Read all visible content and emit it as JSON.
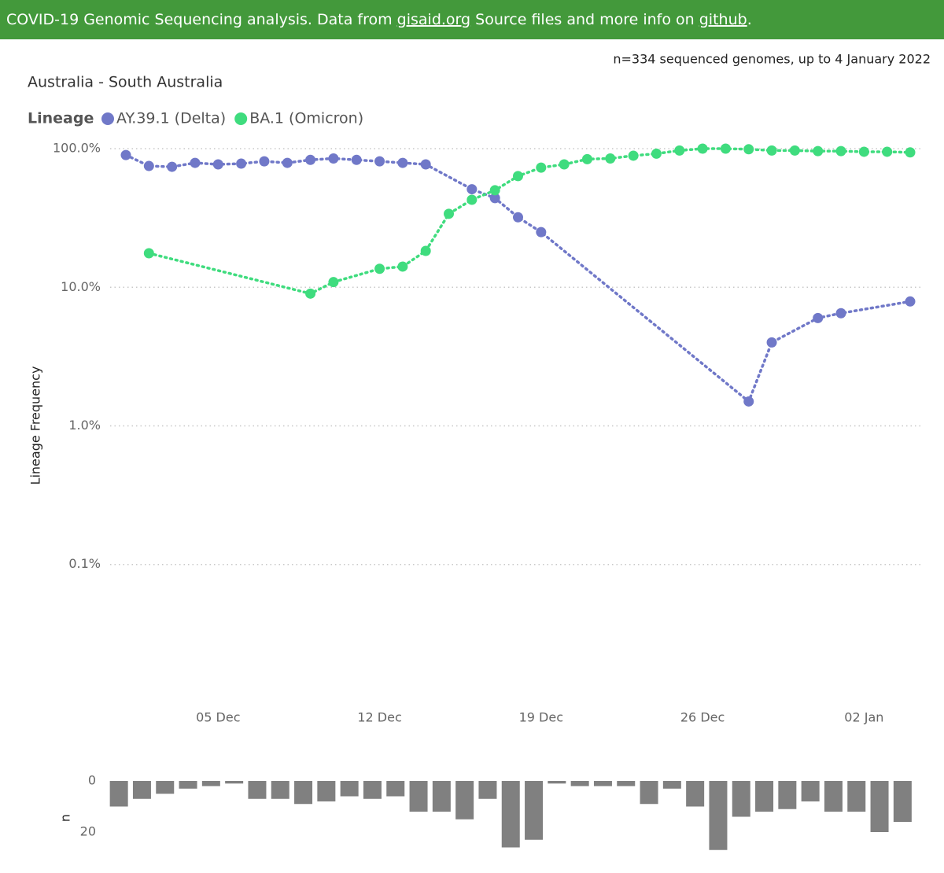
{
  "header": {
    "parts": [
      {
        "text": "COVID-19 Genomic Sequencing analysis. Data from "
      },
      {
        "text": "gisaid.org",
        "link": true
      },
      {
        "text": " Source files and more info on "
      },
      {
        "text": "github",
        "link": true
      },
      {
        "text": "."
      }
    ]
  },
  "chart_data": [
    {
      "type": "line",
      "title": "Australia - South Australia",
      "subtitle": "n=334 sequenced genomes, up to 4 January 2022",
      "legend_title": "Lineage",
      "ylabel": "Lineage Frequency",
      "yscale": "log",
      "ylim": [
        0.012,
        114
      ],
      "yticks": [
        {
          "value": 100,
          "label": "100.0%"
        },
        {
          "value": 10,
          "label": "10.0%"
        },
        {
          "value": 1,
          "label": "1.0%"
        },
        {
          "value": 0.1,
          "label": "0.1%"
        }
      ],
      "xlim": [
        "01 Dec",
        "04 Jan"
      ],
      "xticks": [
        "05 Dec",
        "12 Dec",
        "19 Dec",
        "26 Dec",
        "02 Jan"
      ],
      "grid": true,
      "series": [
        {
          "name": "AY.39.1 (Delta)",
          "color": "#7078c8",
          "x": [
            "01 Dec",
            "02 Dec",
            "03 Dec",
            "04 Dec",
            "05 Dec",
            "06 Dec",
            "07 Dec",
            "08 Dec",
            "09 Dec",
            "10 Dec",
            "11 Dec",
            "12 Dec",
            "13 Dec",
            "14 Dec",
            "16 Dec",
            "17 Dec",
            "18 Dec",
            "19 Dec",
            "28 Dec",
            "29 Dec",
            "31 Dec",
            "01 Jan",
            "04 Jan"
          ],
          "values": [
            90,
            75,
            74,
            79,
            77,
            78,
            81,
            79,
            83,
            85,
            83,
            81,
            79,
            77,
            51,
            44,
            32,
            25,
            1.5,
            4.0,
            6.0,
            6.5,
            7.9
          ]
        },
        {
          "name": "BA.1 (Omicron)",
          "color": "#3fdc7e",
          "x": [
            "02 Dec",
            "09 Dec",
            "10 Dec",
            "12 Dec",
            "13 Dec",
            "14 Dec",
            "15 Dec",
            "16 Dec",
            "17 Dec",
            "18 Dec",
            "19 Dec",
            "20 Dec",
            "21 Dec",
            "22 Dec",
            "23 Dec",
            "24 Dec",
            "25 Dec",
            "26 Dec",
            "27 Dec",
            "28 Dec",
            "29 Dec",
            "30 Dec",
            "31 Dec",
            "01 Jan",
            "02 Jan",
            "03 Jan",
            "04 Jan"
          ],
          "values": [
            17.6,
            9.0,
            10.9,
            13.6,
            14.1,
            18.3,
            33.9,
            42.8,
            50.1,
            63.4,
            73,
            77,
            84,
            85,
            89,
            92,
            97,
            100,
            100,
            99,
            97,
            97,
            96,
            96,
            95,
            95,
            94
          ]
        }
      ]
    },
    {
      "type": "bar",
      "ylabel": "n",
      "ylim": [
        0,
        28
      ],
      "yticks": [
        0,
        20
      ],
      "inverted": true,
      "color": "#808080",
      "values": [
        10,
        7,
        5,
        3,
        2,
        1,
        7,
        7,
        9,
        8,
        6,
        7,
        6,
        12,
        12,
        15,
        7,
        26,
        23,
        1,
        2,
        2,
        2,
        9,
        3,
        10,
        27,
        14,
        12,
        11,
        8,
        12,
        12,
        20,
        16
      ]
    }
  ]
}
